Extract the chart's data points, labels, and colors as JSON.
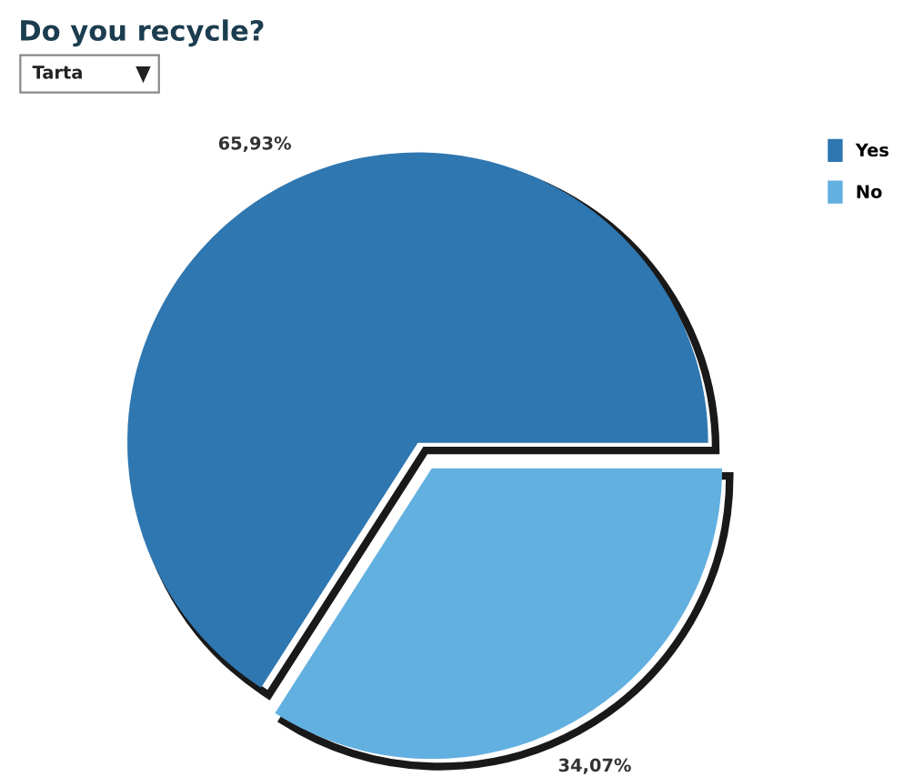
{
  "chart_data": {
    "type": "pie",
    "title": "Do you recycle?",
    "categories": [
      "Yes",
      "No"
    ],
    "values": [
      65.93,
      34.07
    ],
    "value_labels": [
      "65,93%",
      "34,07%"
    ],
    "colors": [
      "#2f77b1",
      "#62b0e0"
    ],
    "legend": "right",
    "annotations": [
      "Tarta"
    ]
  }
}
